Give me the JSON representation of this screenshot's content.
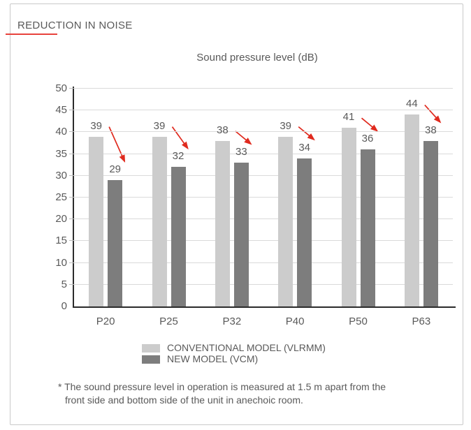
{
  "page": {
    "title": "REDUCTION IN NOISE",
    "accent_color": "#e8423c",
    "arrow_color": "#e02a1e",
    "text_color": "#595959",
    "border_color": "#c9c9c9"
  },
  "footnote": {
    "lines": [
      "* The sound pressure level in operation is measured at 1.5 m apart from the",
      "front side and bottom side of the unit in anechoic room."
    ]
  },
  "chart_data": {
    "type": "bar",
    "title": "Sound pressure level (dB)",
    "categories": [
      "P20",
      "P25",
      "P32",
      "P40",
      "P50",
      "P63"
    ],
    "series": [
      {
        "name": "CONVENTIONAL MODEL (VLRMM)",
        "color": "#cccccc",
        "values": [
          39,
          39,
          38,
          39,
          41,
          44
        ]
      },
      {
        "name": "NEW MODEL (VCM)",
        "color": "#7d7d7d",
        "values": [
          29,
          32,
          33,
          34,
          36,
          38
        ]
      }
    ],
    "ylim": [
      0,
      50
    ],
    "ytick_step": 5,
    "grid": true,
    "legend_position": "bottom",
    "annotations": "red diagonal arrow per category pointing from conventional value down to new model value"
  }
}
